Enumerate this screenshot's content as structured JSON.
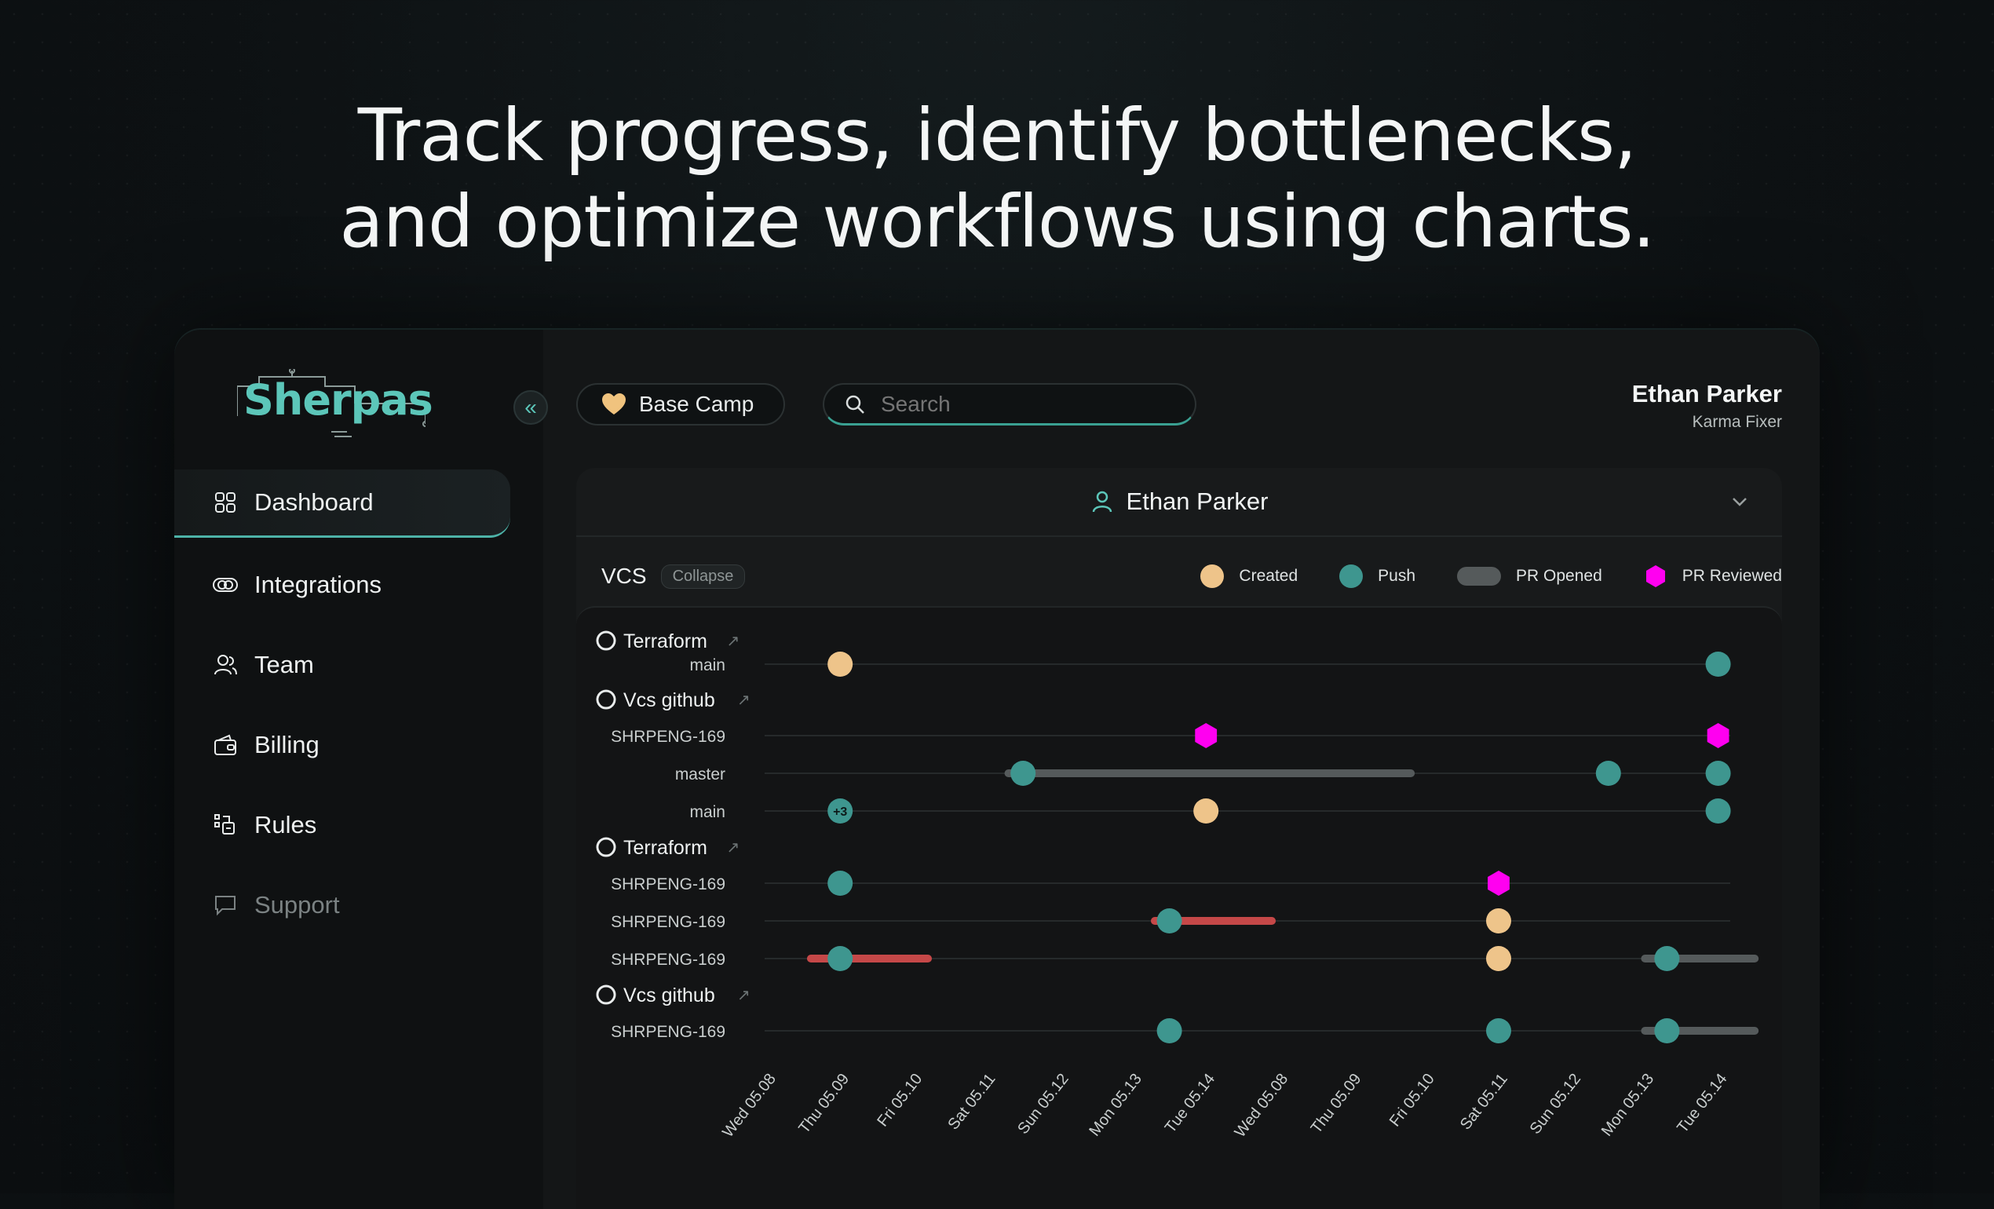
{
  "headline": {
    "line1": "Track progress, identify bottlenecks,",
    "line2": "and optimize workflows using charts."
  },
  "logo": {
    "text": "Sherpas"
  },
  "sidebar": {
    "items": [
      {
        "label": "Dashboard",
        "icon": "grid-icon",
        "active": true
      },
      {
        "label": "Integrations",
        "icon": "link-icon"
      },
      {
        "label": "Team",
        "icon": "users-icon"
      },
      {
        "label": "Billing",
        "icon": "wallet-icon"
      },
      {
        "label": "Rules",
        "icon": "rules-icon"
      },
      {
        "label": "Support",
        "icon": "chat-icon",
        "disabled": true
      }
    ]
  },
  "topbar": {
    "basecamp_label": "Base Camp",
    "search_placeholder": "Search",
    "user_name": "Ethan Parker",
    "user_role": "Karma Fixer"
  },
  "panel": {
    "user_name": "Ethan Parker",
    "section_title": "VCS",
    "collapse_label": "Collapse"
  },
  "colors": {
    "created": "#eec48a",
    "push": "#3e968f",
    "pr_opened": "#555a5b",
    "pr_reviewed": "#ff00f0",
    "bar_red": "#c54848",
    "accent": "#5cc6b9"
  },
  "chart_data": {
    "type": "scatter",
    "legend": [
      "Created",
      "Push",
      "PR Opened",
      "PR Reviewed"
    ],
    "x_ticks": [
      "Wed 05.08",
      "Thu 05.09",
      "Fri 05.10",
      "Sat 05.11",
      "Sun 05.12",
      "Mon 05.13",
      "Tue 05.14",
      "Wed 05.08",
      "Thu 05.09",
      "Fri 05.10",
      "Sat 05.11",
      "Sun 05.12",
      "Mon 05.13",
      "Tue 05.14"
    ],
    "rows": [
      {
        "kind": "repo",
        "label": "Terraform"
      },
      {
        "kind": "branch",
        "label": "main",
        "events": [
          {
            "t": "created",
            "x": 1
          },
          {
            "t": "push",
            "x": 13
          }
        ]
      },
      {
        "kind": "repo",
        "label": "Vcs github"
      },
      {
        "kind": "branch",
        "label": "SHRPENG-169",
        "events": [
          {
            "t": "reviewed",
            "x": 6
          },
          {
            "t": "reviewed",
            "x": 13
          }
        ]
      },
      {
        "kind": "branch",
        "label": "master",
        "bars": [
          {
            "c": "gray",
            "from": 3.3,
            "to": 8.8
          }
        ],
        "events": [
          {
            "t": "push",
            "x": 3.5
          },
          {
            "t": "push",
            "x": 11.5
          },
          {
            "t": "push",
            "x": 13
          }
        ]
      },
      {
        "kind": "branch",
        "label": "main",
        "events": [
          {
            "t": "push",
            "x": 1,
            "badge": "+3"
          },
          {
            "t": "created",
            "x": 6
          },
          {
            "t": "push",
            "x": 13
          }
        ]
      },
      {
        "kind": "repo",
        "label": "Terraform"
      },
      {
        "kind": "branch",
        "label": "SHRPENG-169",
        "events": [
          {
            "t": "push",
            "x": 1
          },
          {
            "t": "reviewed",
            "x": 10
          }
        ]
      },
      {
        "kind": "branch",
        "label": "SHRPENG-169",
        "bars": [
          {
            "c": "red",
            "from": 5.3,
            "to": 6.9
          }
        ],
        "events": [
          {
            "t": "push",
            "x": 5.5
          },
          {
            "t": "created",
            "x": 10
          }
        ]
      },
      {
        "kind": "branch",
        "label": "SHRPENG-169",
        "bars": [
          {
            "c": "red",
            "from": 0.6,
            "to": 2.2
          },
          {
            "c": "gray",
            "from": 12,
            "to": 13.5
          }
        ],
        "events": [
          {
            "t": "push",
            "x": 1
          },
          {
            "t": "created",
            "x": 10
          },
          {
            "t": "push",
            "x": 12.3
          }
        ]
      },
      {
        "kind": "repo",
        "label": "Vcs github"
      },
      {
        "kind": "branch",
        "label": "SHRPENG-169",
        "bars": [
          {
            "c": "gray",
            "from": 12,
            "to": 13.5
          }
        ],
        "events": [
          {
            "t": "push",
            "x": 5.5
          },
          {
            "t": "push",
            "x": 10
          },
          {
            "t": "push",
            "x": 12.3
          }
        ]
      }
    ]
  }
}
